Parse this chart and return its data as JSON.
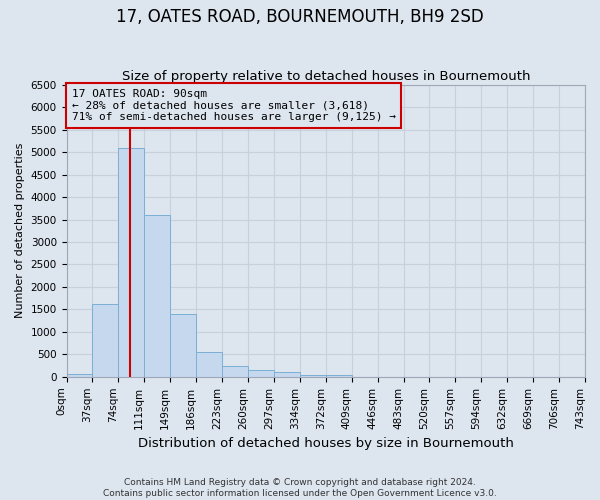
{
  "title": "17, OATES ROAD, BOURNEMOUTH, BH9 2SD",
  "subtitle": "Size of property relative to detached houses in Bournemouth",
  "xlabel": "Distribution of detached houses by size in Bournemouth",
  "ylabel": "Number of detached properties",
  "footer_line1": "Contains HM Land Registry data © Crown copyright and database right 2024.",
  "footer_line2": "Contains public sector information licensed under the Open Government Licence v3.0.",
  "bin_labels": [
    "0sqm",
    "37sqm",
    "74sqm",
    "111sqm",
    "149sqm",
    "186sqm",
    "223sqm",
    "260sqm",
    "297sqm",
    "334sqm",
    "372sqm",
    "409sqm",
    "446sqm",
    "483sqm",
    "520sqm",
    "557sqm",
    "594sqm",
    "632sqm",
    "669sqm",
    "706sqm",
    "743sqm"
  ],
  "bar_values": [
    60,
    1630,
    5080,
    3600,
    1400,
    560,
    240,
    160,
    100,
    50,
    30,
    0,
    0,
    0,
    0,
    0,
    0,
    0,
    0,
    0
  ],
  "bar_color": "#c5d8ed",
  "bar_edge_color": "#7bafd4",
  "grid_color": "#c8d0dc",
  "property_line_x": 2.43,
  "annotation_text": "17 OATES ROAD: 90sqm\n← 28% of detached houses are smaller (3,618)\n71% of semi-detached houses are larger (9,125) →",
  "annotation_box_color": "#cc0000",
  "ylim": [
    0,
    6500
  ],
  "yticks": [
    0,
    500,
    1000,
    1500,
    2000,
    2500,
    3000,
    3500,
    4000,
    4500,
    5000,
    5500,
    6000,
    6500
  ],
  "background_color": "#dde5ef",
  "title_fontsize": 12,
  "subtitle_fontsize": 9.5,
  "xlabel_fontsize": 9.5,
  "ylabel_fontsize": 8,
  "tick_fontsize": 7.5,
  "footer_fontsize": 6.5,
  "annotation_fontsize": 8
}
